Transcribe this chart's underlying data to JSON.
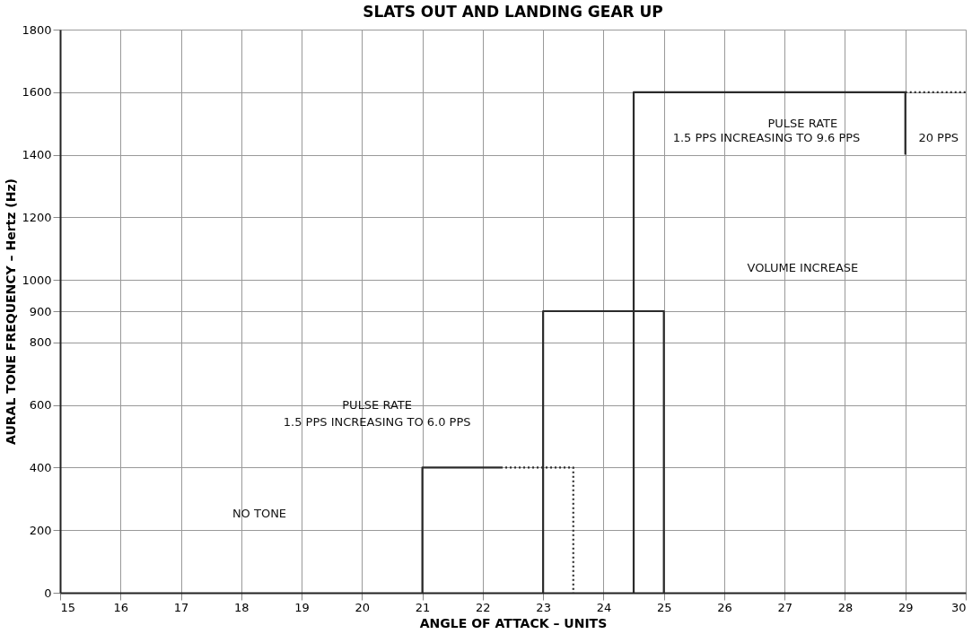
{
  "chart_data": {
    "type": "line",
    "title": "SLATS OUT AND LANDING GEAR UP",
    "xlabel": "ANGLE OF ATTACK – UNITS",
    "ylabel": "AURAL TONE FREQUENCY – Hertz (Hz)",
    "xlim": [
      15,
      30
    ],
    "xticks": [
      15,
      16,
      17,
      18,
      19,
      20,
      21,
      22,
      23,
      24,
      25,
      26,
      27,
      28,
      29,
      30
    ],
    "ylim": [
      0,
      1800
    ],
    "yticks": [
      0,
      200,
      400,
      600,
      800,
      900,
      1000,
      1200,
      1400,
      1600,
      1800
    ],
    "grid": true,
    "marker": "none",
    "series": [
      {
        "color": "#2b2b2b",
        "x": [
          21,
          21,
          22.3
        ],
        "values": [
          0,
          400,
          400
        ],
        "line_style": "solid"
      },
      {
        "color": "#2b2b2b",
        "x": [
          22.3,
          23.5,
          23.5
        ],
        "values": [
          400,
          400,
          0
        ],
        "line_style": "dotted"
      },
      {
        "color": "#2b2b2b",
        "x": [
          23,
          23,
          25,
          25
        ],
        "values": [
          0,
          900,
          900,
          0
        ],
        "line_style": "solid"
      },
      {
        "color": "#2b2b2b",
        "x": [
          24.5,
          24.5,
          29,
          29
        ],
        "values": [
          0,
          1600,
          1600,
          1400
        ],
        "line_style": "solid"
      },
      {
        "color": "#2b2b2b",
        "x": [
          29,
          30
        ],
        "values": [
          1600,
          1600
        ],
        "line_style": "dotted"
      }
    ],
    "annotations": [
      "NO TONE",
      "PULSE RATE",
      "1.5 PPS INCREASING TO 6.0 PPS",
      "PULSE RATE",
      "1.5 PPS INCREASING TO 9.6 PPS",
      "20 PPS",
      "VOLUME INCREASE"
    ]
  }
}
